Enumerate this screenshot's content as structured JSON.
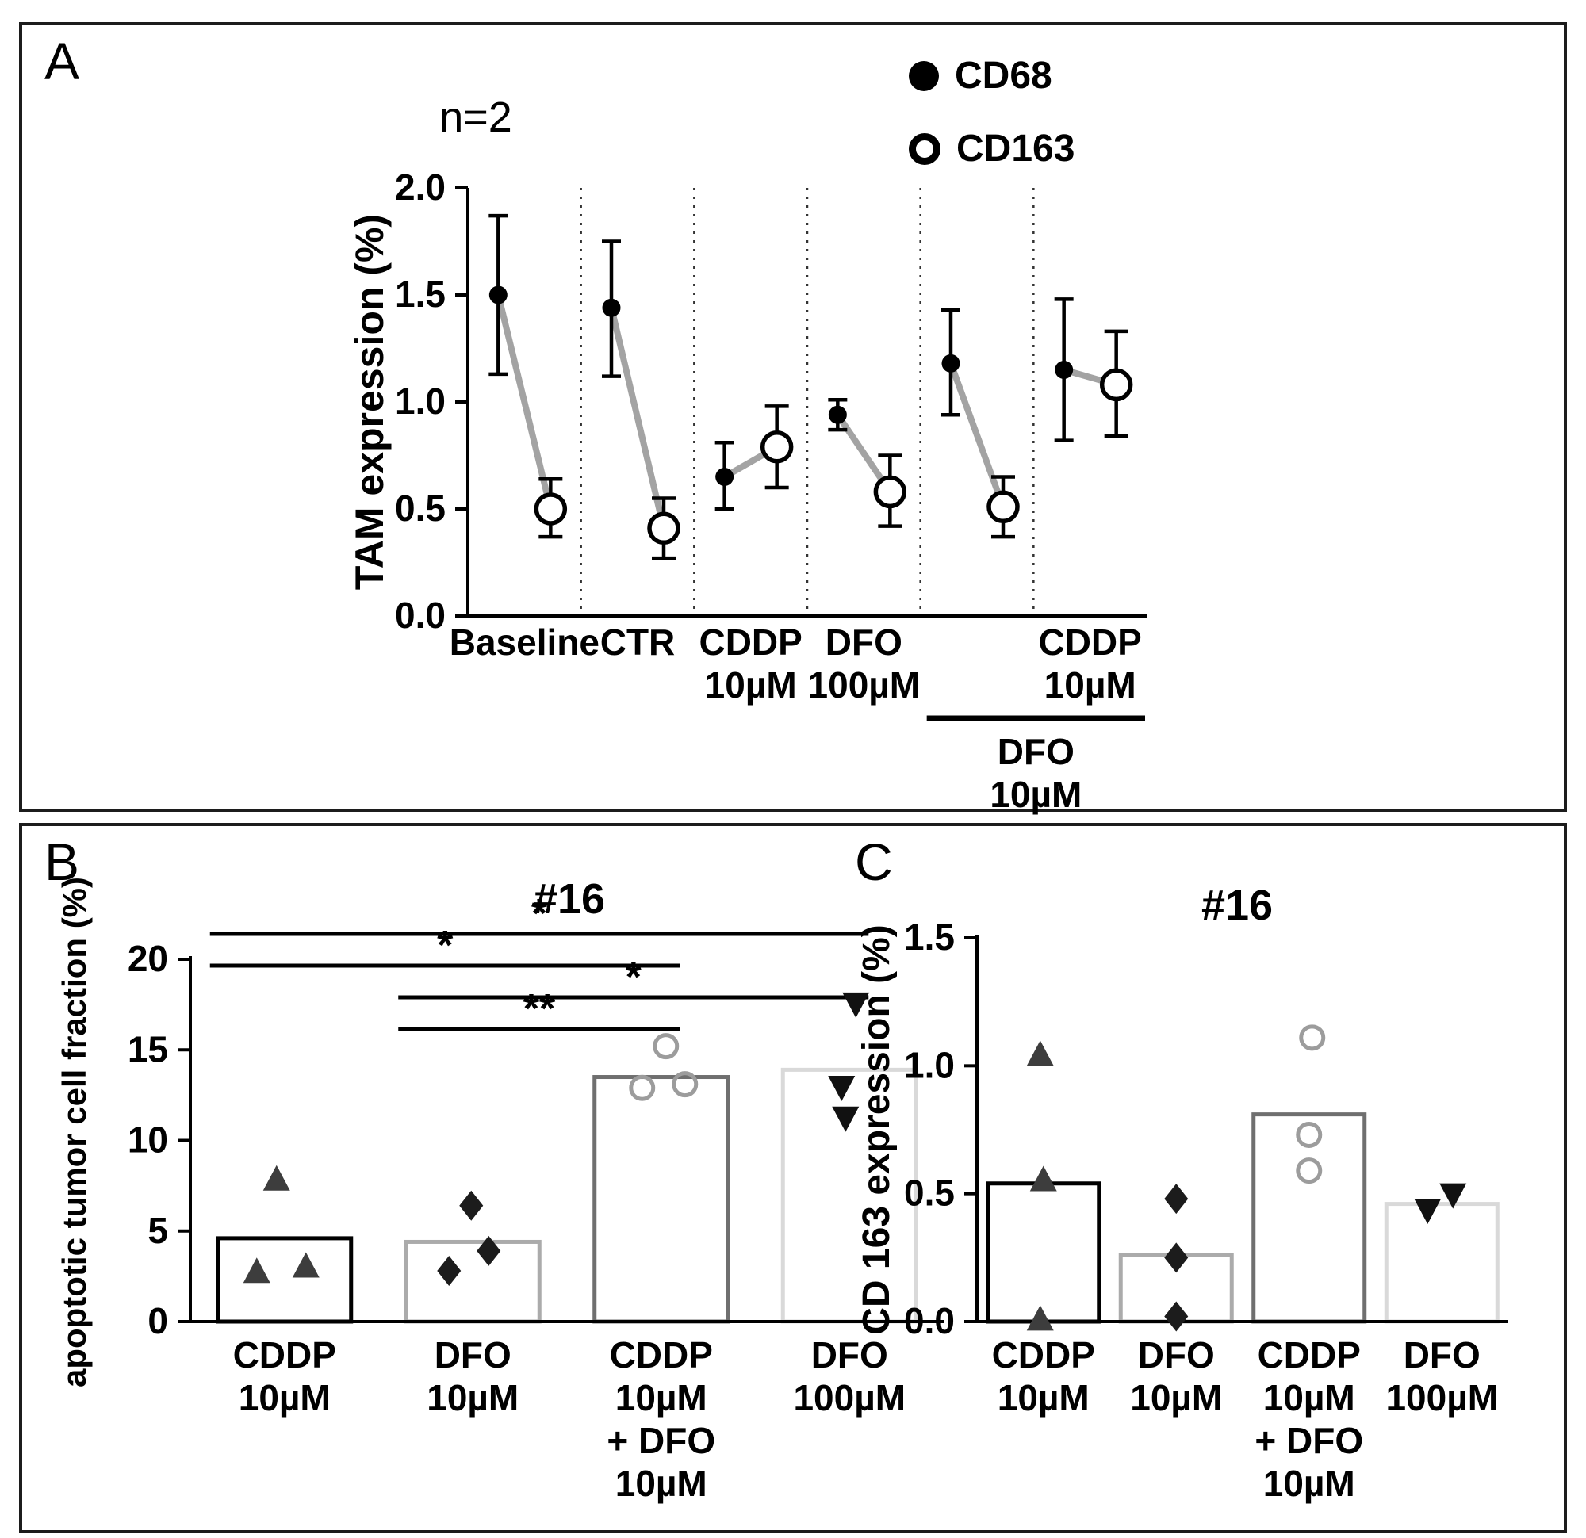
{
  "panels": {
    "a_label": "A",
    "b_label": "B",
    "c_label": "C"
  },
  "chart_data": [
    {
      "id": "tam-expression",
      "type": "pointrange",
      "title": "n=2",
      "ylabel": "TAM expression (%)",
      "ylim": [
        0,
        2.0
      ],
      "ytick_labels": [
        "0.0",
        "0.5",
        "1.0",
        "1.5",
        "2.0"
      ],
      "legend": [
        {
          "label": "CD68",
          "marker": "filled-circle"
        },
        {
          "label": "CD163",
          "marker": "open-circle"
        }
      ],
      "groups": [
        {
          "label_lines": [
            "Baseline"
          ],
          "cd68": {
            "mean": 1.5,
            "lo": 1.13,
            "hi": 1.87
          },
          "cd163": {
            "mean": 0.5,
            "lo": 0.37,
            "hi": 0.64
          }
        },
        {
          "label_lines": [
            "CTR"
          ],
          "cd68": {
            "mean": 1.44,
            "lo": 1.12,
            "hi": 1.75
          },
          "cd163": {
            "mean": 0.41,
            "lo": 0.27,
            "hi": 0.55
          }
        },
        {
          "label_lines": [
            "CDDP",
            "10µM"
          ],
          "cd68": {
            "mean": 0.65,
            "lo": 0.5,
            "hi": 0.81
          },
          "cd163": {
            "mean": 0.79,
            "lo": 0.6,
            "hi": 0.98
          }
        },
        {
          "label_lines": [
            "DFO",
            "100µM"
          ],
          "cd68": {
            "mean": 0.94,
            "lo": 0.87,
            "hi": 1.01
          },
          "cd163": {
            "mean": 0.58,
            "lo": 0.42,
            "hi": 0.75
          }
        },
        {
          "label_lines": [],
          "cd68": {
            "mean": 1.18,
            "lo": 0.94,
            "hi": 1.43
          },
          "cd163": {
            "mean": 0.51,
            "lo": 0.37,
            "hi": 0.65
          }
        },
        {
          "label_lines": [
            "CDDP",
            "10µM"
          ],
          "cd68": {
            "mean": 1.15,
            "lo": 0.82,
            "hi": 1.48
          },
          "cd163": {
            "mean": 1.08,
            "lo": 0.84,
            "hi": 1.33
          }
        }
      ],
      "bracket": {
        "label_lines": [
          "DFO",
          "10µM"
        ],
        "from_group": 4,
        "to_group": 5
      }
    },
    {
      "id": "apoptotic-tumor-cell-fraction",
      "type": "bar-scatter",
      "title": "#16",
      "ylabel": "apoptotic tumor cell fraction (%)",
      "ylim": [
        0,
        20
      ],
      "ytick_labels": [
        "0",
        "5",
        "10",
        "15",
        "20"
      ],
      "categories": [
        [
          "CDDP",
          "10µM"
        ],
        [
          "DFO",
          "10µM"
        ],
        [
          "CDDP",
          "10µM",
          "+ DFO",
          "10µM"
        ],
        [
          "DFO",
          "100µM"
        ]
      ],
      "bars": [
        {
          "value": 4.6,
          "outline": "#000000"
        },
        {
          "value": 4.4,
          "outline": "#ababab"
        },
        {
          "value": 13.5,
          "outline": "#6f6f6f"
        },
        {
          "value": 13.9,
          "outline": "#d9d9d9"
        }
      ],
      "points": [
        {
          "marker": "triangle-up",
          "color": "#3d3d3d",
          "values": [
            {
              "dx": -10,
              "v": 7.8
            },
            {
              "dx": -35,
              "v": 2.7
            },
            {
              "dx": 27,
              "v": 3.0
            }
          ]
        },
        {
          "marker": "diamond",
          "color": "#1c1c1c",
          "values": [
            {
              "dx": -2,
              "v": 6.4
            },
            {
              "dx": -30,
              "v": 2.8
            },
            {
              "dx": 20,
              "v": 3.9
            }
          ]
        },
        {
          "marker": "open-circle",
          "color": "#9c9c9c",
          "values": [
            {
              "dx": 6,
              "v": 15.2
            },
            {
              "dx": -24,
              "v": 12.9
            },
            {
              "dx": 30,
              "v": 13.1
            }
          ]
        },
        {
          "marker": "triangle-down",
          "color": "#111111",
          "values": [
            {
              "dx": 8,
              "v": 17.6
            },
            {
              "dx": -10,
              "v": 13.0
            },
            {
              "dx": -5,
              "v": 11.3
            }
          ]
        }
      ],
      "significance": [
        {
          "from": 0,
          "to": 3,
          "label": "*"
        },
        {
          "from": 0,
          "to": 2,
          "label": "*"
        },
        {
          "from": 1,
          "to": 3,
          "label": "*"
        },
        {
          "from": 1,
          "to": 2,
          "label": "**"
        }
      ]
    },
    {
      "id": "cd163-expression",
      "type": "bar-scatter",
      "title": "#16",
      "ylabel": "CD 163 expression (%)",
      "ylim": [
        0,
        1.5
      ],
      "ytick_labels": [
        "0.0",
        "0.5",
        "1.0",
        "1.5"
      ],
      "categories": [
        [
          "CDDP",
          "10µM"
        ],
        [
          "DFO",
          "10µM"
        ],
        [
          "CDDP",
          "10µM",
          "+ DFO",
          "10µM"
        ],
        [
          "DFO",
          "100µM"
        ]
      ],
      "bars": [
        {
          "value": 0.54,
          "outline": "#000000"
        },
        {
          "value": 0.26,
          "outline": "#ababab"
        },
        {
          "value": 0.81,
          "outline": "#6f6f6f"
        },
        {
          "value": 0.46,
          "outline": "#d9d9d9"
        }
      ],
      "points": [
        {
          "marker": "triangle-up",
          "color": "#3d3d3d",
          "values": [
            {
              "dx": -4,
              "v": 1.04
            },
            {
              "dx": 0,
              "v": 0.55
            },
            {
              "dx": -4,
              "v": 0.005
            }
          ]
        },
        {
          "marker": "diamond",
          "color": "#1c1c1c",
          "values": [
            {
              "dx": 0,
              "v": 0.48
            },
            {
              "dx": 0,
              "v": 0.25
            },
            {
              "dx": 0,
              "v": 0.02
            }
          ]
        },
        {
          "marker": "open-circle",
          "color": "#9c9c9c",
          "values": [
            {
              "dx": 4,
              "v": 1.11
            },
            {
              "dx": 0,
              "v": 0.73
            },
            {
              "dx": 0,
              "v": 0.59
            }
          ]
        },
        {
          "marker": "triangle-down",
          "color": "#111111",
          "values": [
            {
              "dx": -18,
              "v": 0.44
            },
            {
              "dx": 14,
              "v": 0.5
            }
          ]
        }
      ],
      "significance": []
    }
  ]
}
